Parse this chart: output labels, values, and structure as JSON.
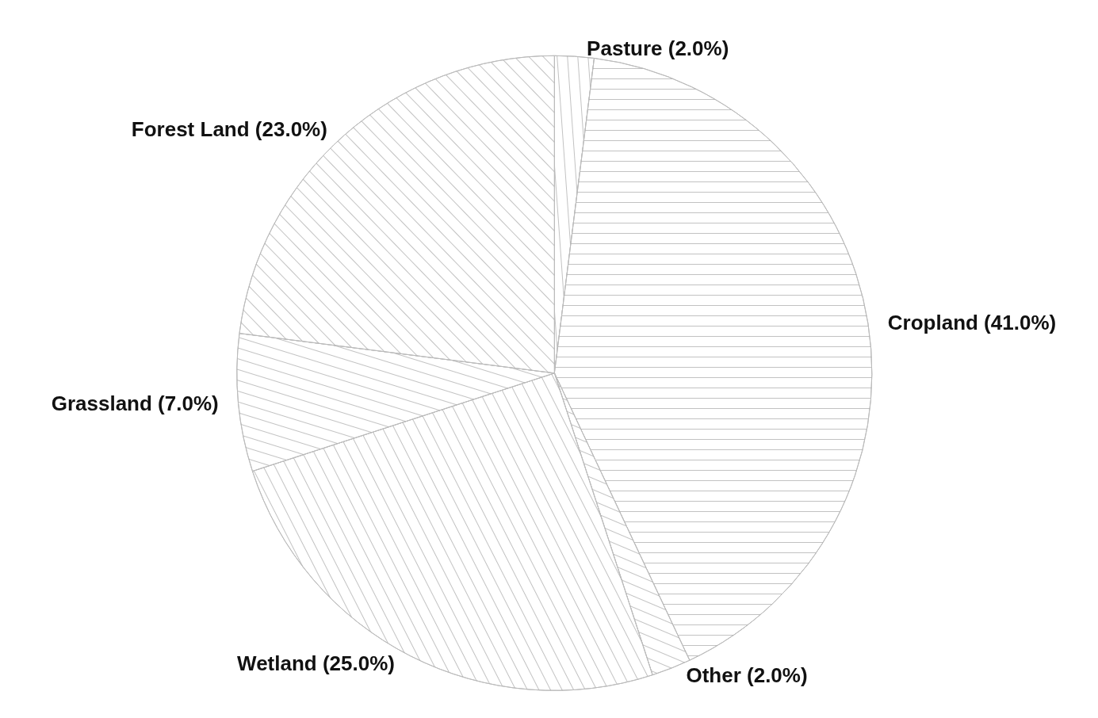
{
  "chart_data": {
    "type": "pie",
    "categories": [
      "Pasture",
      "Cropland",
      "Other",
      "Wetland",
      "Grassland",
      "Forest Land"
    ],
    "values": [
      2,
      41,
      2,
      25,
      7,
      23
    ],
    "value_labels": [
      "(2.0%)",
      "(41.0%)",
      "(2.0%)",
      "(25.0%)",
      "(7.0%)",
      "(23.0%)"
    ],
    "colors": [
      "#ffffff",
      "#ffffff",
      "#ffffff",
      "#ffffff",
      "#ffffff",
      "#ffffff"
    ],
    "legend": false
  }
}
